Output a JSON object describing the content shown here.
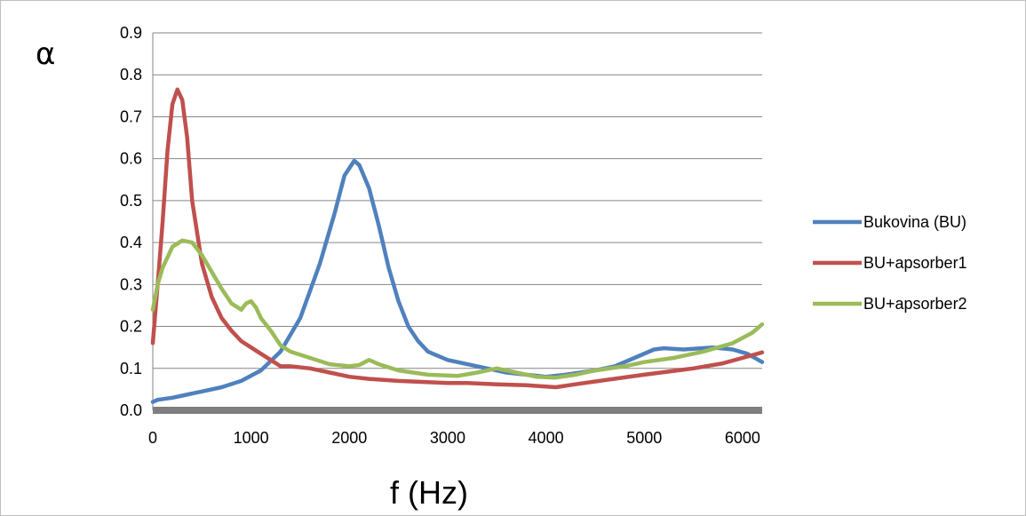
{
  "chart_data": {
    "type": "line",
    "xlabel": "f (Hz)",
    "ylabel": "α",
    "xlim": [
      0,
      6200
    ],
    "ylim": [
      0,
      0.9
    ],
    "xticks": [
      0,
      1000,
      2000,
      3000,
      4000,
      5000,
      6000
    ],
    "xtick_labels": [
      "0",
      "1000",
      "2000",
      "3000",
      "4000",
      "5000",
      "6000"
    ],
    "yticks": [
      0,
      0.1,
      0.2,
      0.3,
      0.4,
      0.5,
      0.6,
      0.7,
      0.8,
      0.9
    ],
    "ytick_labels": [
      "0.0",
      "0.1",
      "0.2",
      "0.3",
      "0.4",
      "0.5",
      "0.6",
      "0.7",
      "0.8",
      "0.9"
    ],
    "grid": "horizontal",
    "legend": "right",
    "series": [
      {
        "name": "Bukovina (BU)",
        "color": "#4f81bd",
        "points": [
          [
            0,
            0.02
          ],
          [
            50,
            0.025
          ],
          [
            200,
            0.03
          ],
          [
            300,
            0.035
          ],
          [
            400,
            0.04
          ],
          [
            500,
            0.045
          ],
          [
            700,
            0.055
          ],
          [
            900,
            0.07
          ],
          [
            1100,
            0.095
          ],
          [
            1300,
            0.14
          ],
          [
            1500,
            0.22
          ],
          [
            1700,
            0.35
          ],
          [
            1850,
            0.47
          ],
          [
            1950,
            0.56
          ],
          [
            2050,
            0.595
          ],
          [
            2100,
            0.585
          ],
          [
            2200,
            0.53
          ],
          [
            2300,
            0.44
          ],
          [
            2400,
            0.34
          ],
          [
            2500,
            0.26
          ],
          [
            2600,
            0.2
          ],
          [
            2700,
            0.165
          ],
          [
            2800,
            0.14
          ],
          [
            3000,
            0.12
          ],
          [
            3200,
            0.11
          ],
          [
            3400,
            0.1
          ],
          [
            3600,
            0.09
          ],
          [
            3800,
            0.085
          ],
          [
            4000,
            0.08
          ],
          [
            4200,
            0.085
          ],
          [
            4500,
            0.095
          ],
          [
            4700,
            0.105
          ],
          [
            4900,
            0.125
          ],
          [
            5100,
            0.145
          ],
          [
            5200,
            0.148
          ],
          [
            5400,
            0.145
          ],
          [
            5700,
            0.15
          ],
          [
            5900,
            0.145
          ],
          [
            6050,
            0.135
          ],
          [
            6200,
            0.115
          ]
        ]
      },
      {
        "name": "BU+apsorber1",
        "color": "#c0504d",
        "points": [
          [
            0,
            0.16
          ],
          [
            50,
            0.3
          ],
          [
            100,
            0.45
          ],
          [
            150,
            0.62
          ],
          [
            200,
            0.73
          ],
          [
            250,
            0.765
          ],
          [
            300,
            0.74
          ],
          [
            350,
            0.65
          ],
          [
            400,
            0.5
          ],
          [
            500,
            0.35
          ],
          [
            600,
            0.27
          ],
          [
            700,
            0.22
          ],
          [
            800,
            0.19
          ],
          [
            900,
            0.165
          ],
          [
            1000,
            0.15
          ],
          [
            1100,
            0.135
          ],
          [
            1200,
            0.12
          ],
          [
            1300,
            0.105
          ],
          [
            1400,
            0.105
          ],
          [
            1600,
            0.1
          ],
          [
            1800,
            0.09
          ],
          [
            2000,
            0.08
          ],
          [
            2200,
            0.075
          ],
          [
            2500,
            0.07
          ],
          [
            3000,
            0.065
          ],
          [
            3200,
            0.065
          ],
          [
            3500,
            0.062
          ],
          [
            3800,
            0.06
          ],
          [
            4100,
            0.055
          ],
          [
            4300,
            0.062
          ],
          [
            4600,
            0.072
          ],
          [
            5000,
            0.085
          ],
          [
            5500,
            0.1
          ],
          [
            5800,
            0.112
          ],
          [
            6000,
            0.125
          ],
          [
            6200,
            0.138
          ]
        ]
      },
      {
        "name": "BU+apsorber2",
        "color": "#9bbb59",
        "points": [
          [
            0,
            0.24
          ],
          [
            50,
            0.3
          ],
          [
            100,
            0.34
          ],
          [
            200,
            0.39
          ],
          [
            300,
            0.405
          ],
          [
            400,
            0.4
          ],
          [
            500,
            0.37
          ],
          [
            600,
            0.33
          ],
          [
            700,
            0.29
          ],
          [
            800,
            0.255
          ],
          [
            900,
            0.24
          ],
          [
            950,
            0.255
          ],
          [
            1000,
            0.26
          ],
          [
            1050,
            0.245
          ],
          [
            1100,
            0.22
          ],
          [
            1200,
            0.19
          ],
          [
            1300,
            0.155
          ],
          [
            1400,
            0.14
          ],
          [
            1600,
            0.125
          ],
          [
            1800,
            0.11
          ],
          [
            2000,
            0.105
          ],
          [
            2100,
            0.108
          ],
          [
            2200,
            0.12
          ],
          [
            2300,
            0.11
          ],
          [
            2500,
            0.095
          ],
          [
            2800,
            0.085
          ],
          [
            3100,
            0.082
          ],
          [
            3300,
            0.09
          ],
          [
            3500,
            0.1
          ],
          [
            3700,
            0.09
          ],
          [
            3900,
            0.08
          ],
          [
            4100,
            0.078
          ],
          [
            4300,
            0.085
          ],
          [
            4500,
            0.095
          ],
          [
            4800,
            0.105
          ],
          [
            5000,
            0.115
          ],
          [
            5300,
            0.125
          ],
          [
            5600,
            0.14
          ],
          [
            5900,
            0.16
          ],
          [
            6100,
            0.185
          ],
          [
            6200,
            0.205
          ]
        ]
      }
    ]
  }
}
